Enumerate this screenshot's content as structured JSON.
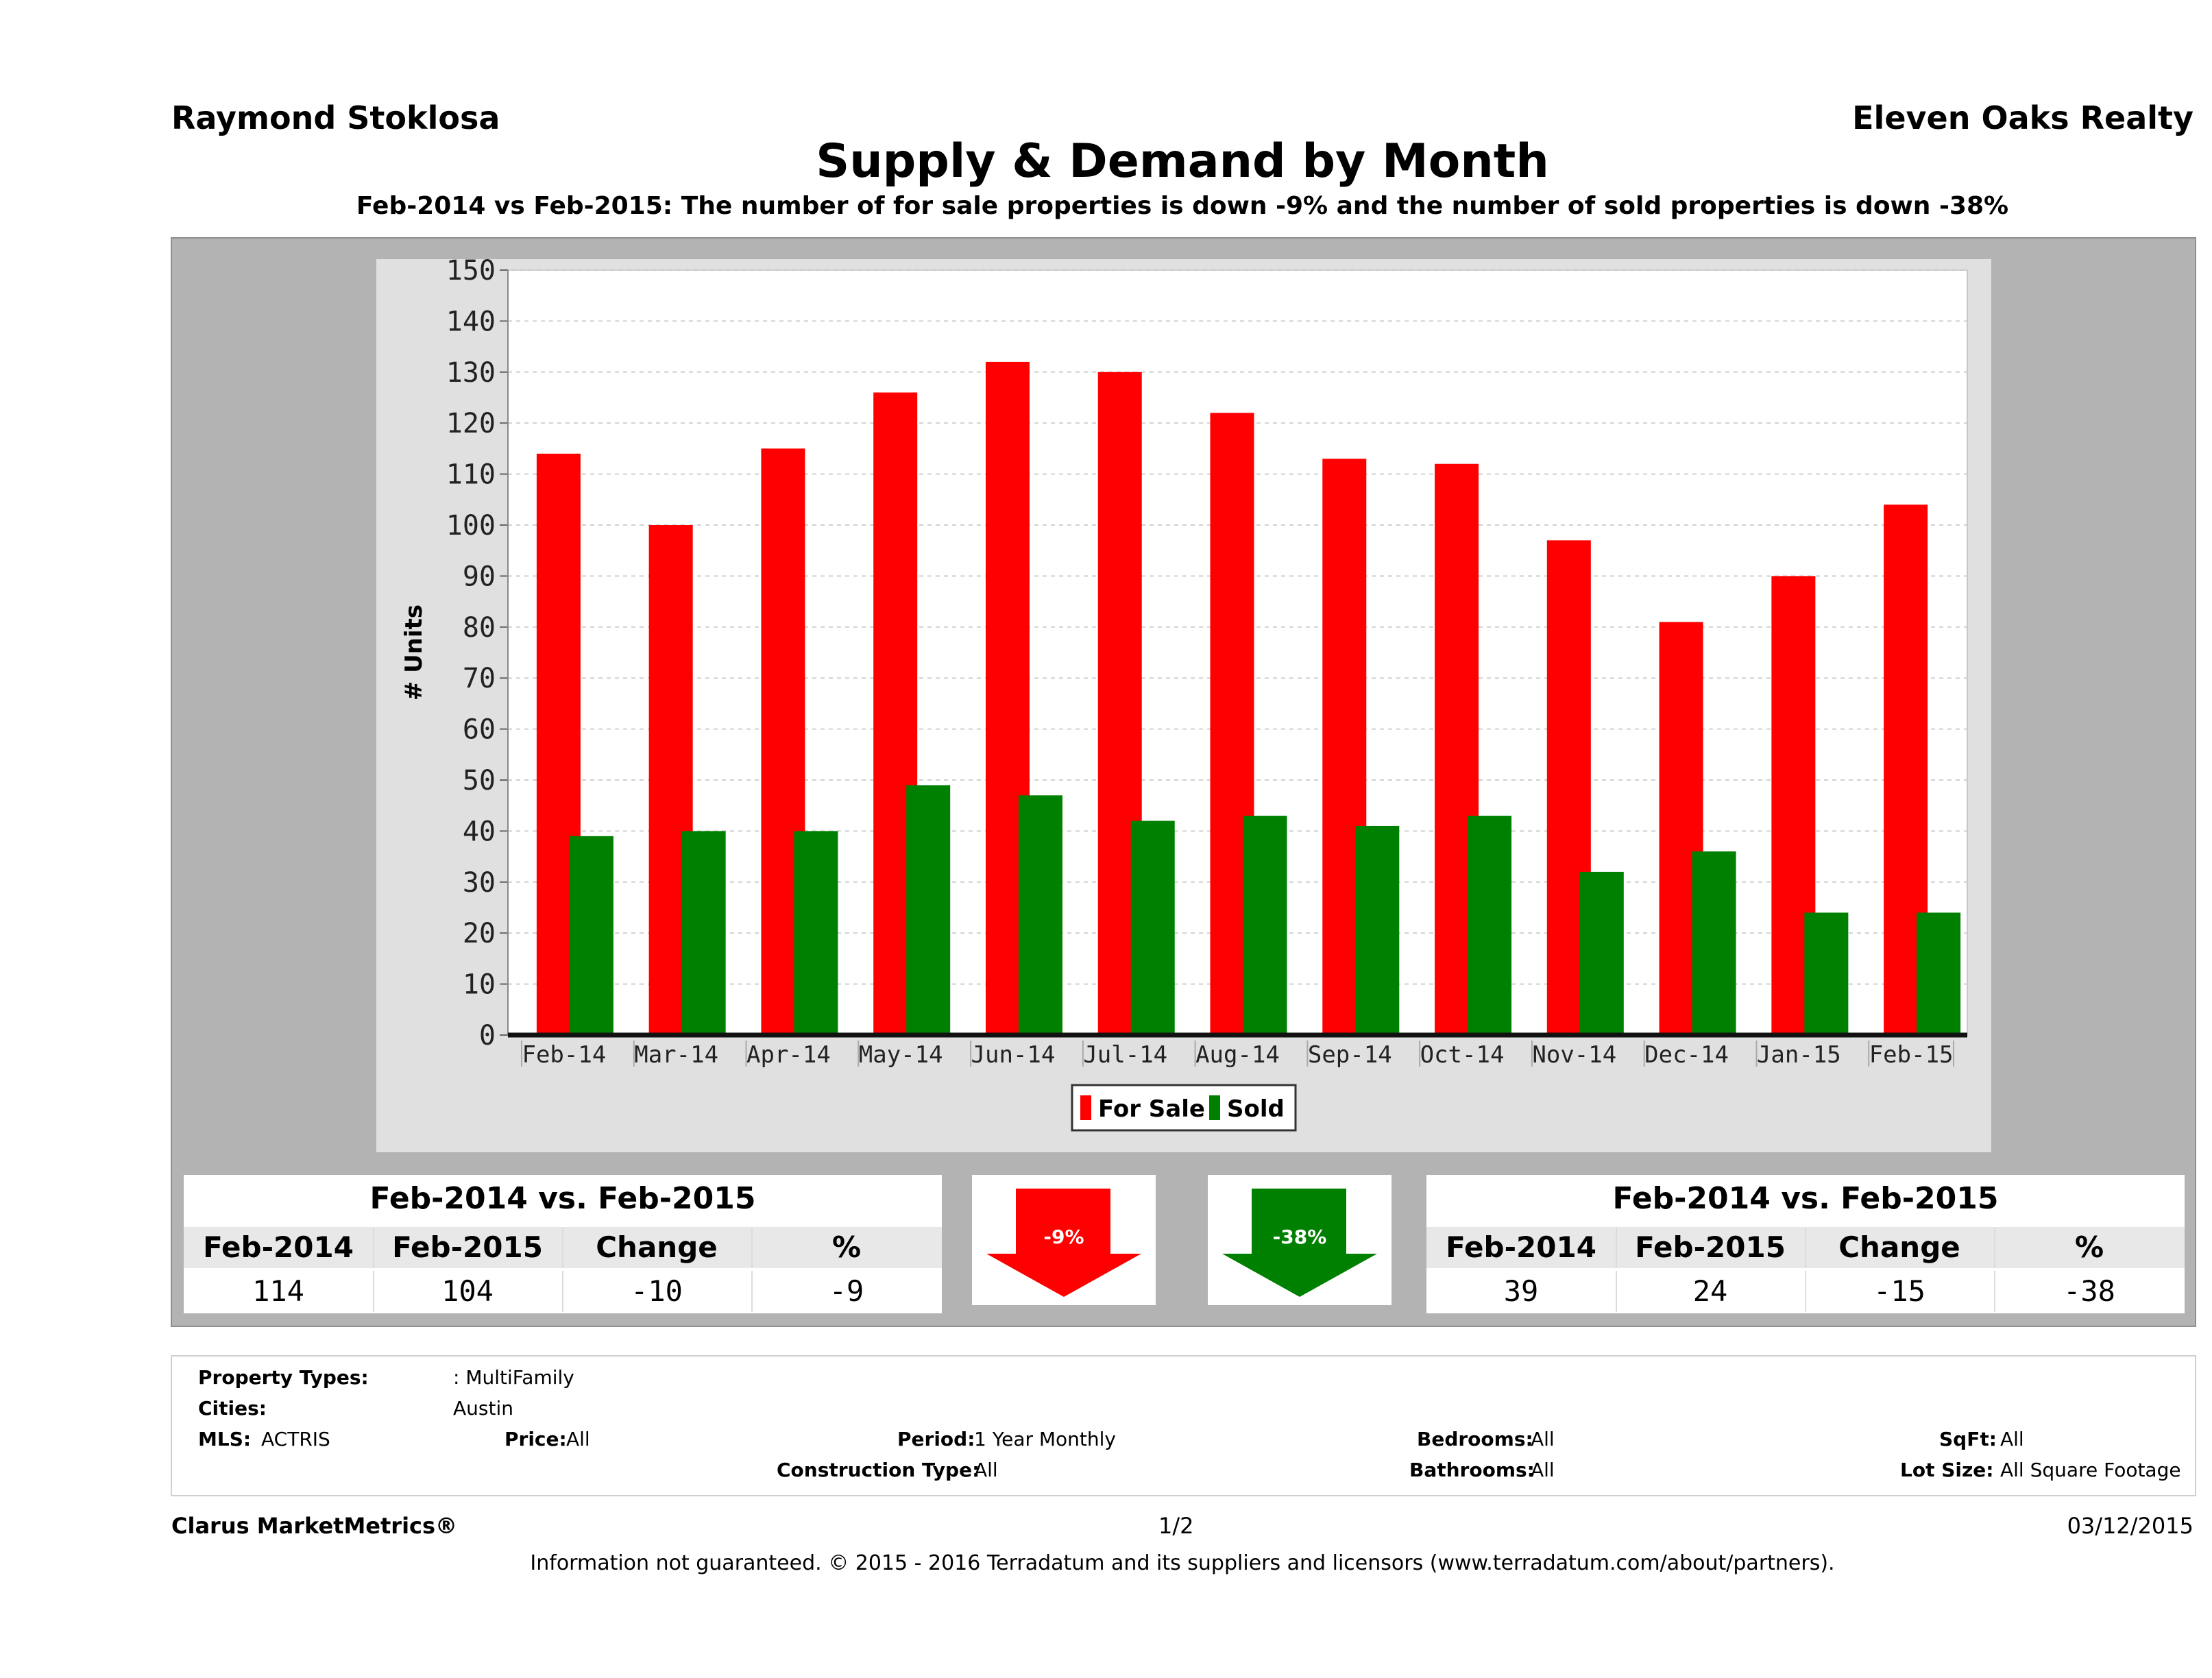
{
  "header": {
    "agent": "Raymond Stoklosa",
    "company": "Eleven Oaks Realty",
    "title": "Supply & Demand by Month",
    "subtitle": "Feb-2014 vs Feb-2015: The number of for sale properties is down -9% and the number of sold properties is down -38%"
  },
  "chart_data": {
    "type": "bar",
    "categories": [
      "Feb-14",
      "Mar-14",
      "Apr-14",
      "May-14",
      "Jun-14",
      "Jul-14",
      "Aug-14",
      "Sep-14",
      "Oct-14",
      "Nov-14",
      "Dec-14",
      "Jan-15",
      "Feb-15"
    ],
    "series": [
      {
        "name": "For Sale",
        "color": "#ff0000",
        "values": [
          114,
          100,
          115,
          126,
          132,
          130,
          122,
          113,
          112,
          97,
          81,
          90,
          104
        ]
      },
      {
        "name": "Sold",
        "color": "#008000",
        "values": [
          39,
          40,
          40,
          49,
          47,
          42,
          43,
          41,
          43,
          32,
          36,
          24,
          24
        ]
      }
    ],
    "ylabel": "# Units",
    "xlabel": "",
    "ylim": [
      0,
      150
    ],
    "yticks": [
      0,
      10,
      20,
      30,
      40,
      50,
      60,
      70,
      80,
      90,
      100,
      110,
      120,
      130,
      140,
      150
    ],
    "grid": true,
    "legend": "bottom-center"
  },
  "forsale_table": {
    "title": "Feb-2014 vs. Feb-2015",
    "headers": [
      "Feb-2014",
      "Feb-2015",
      "Change",
      "%"
    ],
    "values": [
      "114",
      "104",
      "-10",
      "-9"
    ]
  },
  "sold_table": {
    "title": "Feb-2014 vs. Feb-2015",
    "headers": [
      "Feb-2014",
      "Feb-2015",
      "Change",
      "%"
    ],
    "values": [
      "39",
      "24",
      "-15",
      "-38"
    ]
  },
  "forsale_arrow": {
    "label": "-9%",
    "color": "#ff0000"
  },
  "sold_arrow": {
    "label": "-38%",
    "color": "#008000"
  },
  "filters": {
    "property_types_label": "Property Types:",
    "property_types_value": ": MultiFamily",
    "cities_label": "Cities:",
    "cities_value": "Austin",
    "mls_label": "MLS:",
    "mls_value": "ACTRIS",
    "price_label": "Price:",
    "price_value": "All",
    "period_label": "Period:",
    "period_value": "1 Year Monthly",
    "construction_label": "Construction Type:",
    "construction_value": "All",
    "bedrooms_label": "Bedrooms:",
    "bedrooms_value": "All",
    "bathrooms_label": "Bathrooms:",
    "bathrooms_value": "All",
    "sqft_label": "SqFt:",
    "sqft_value": "All",
    "lotsize_label": "Lot Size:",
    "lotsize_value": "All Square Footage"
  },
  "footer": {
    "brand": "Clarus MarketMetrics®",
    "page": "1/2",
    "date": "03/12/2015",
    "disclaimer": "Information not guaranteed. © 2015 - 2016 Terradatum and its suppliers and licensors (www.terradatum.com/about/partners)."
  }
}
